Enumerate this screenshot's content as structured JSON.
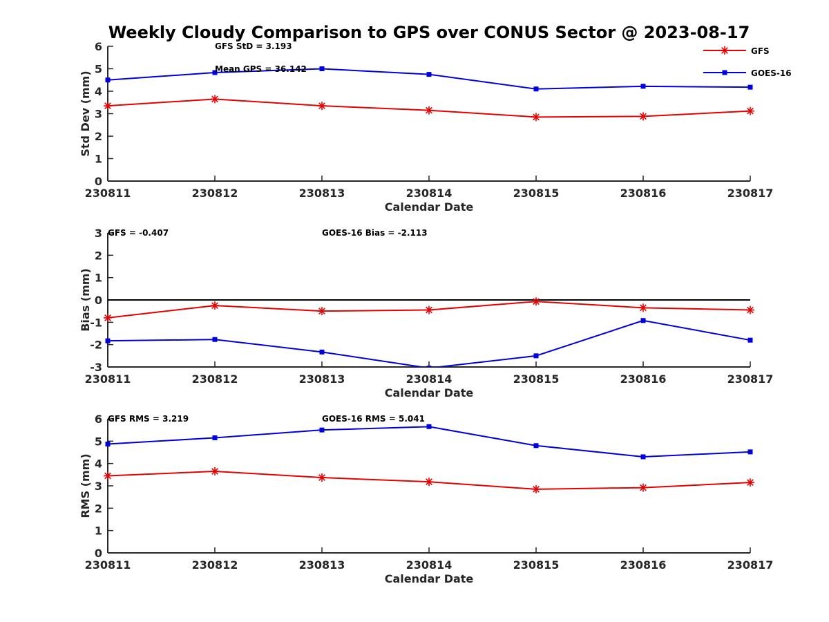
{
  "title": "Weekly Cloudy Comparison to GPS over CONUS Sector @ 2023-08-17",
  "colors": {
    "GFS": "#e60000",
    "GOES-16": "#0000dd",
    "zero_line": "#000000"
  },
  "legend": [
    {
      "name": "GFS",
      "marker": "asterisk"
    },
    {
      "name": "GOES-16",
      "marker": "square"
    }
  ],
  "chart_data": [
    {
      "type": "line",
      "id": "std",
      "categories": [
        "230811",
        "230812",
        "230813",
        "230814",
        "230815",
        "230816",
        "230817"
      ],
      "xlabel": "Calendar Date",
      "ylabel": "Std Dev (mm)",
      "ylim": [
        0,
        6
      ],
      "yticks": [
        0,
        1,
        2,
        3,
        4,
        5,
        6
      ],
      "zero_line": false,
      "series": [
        {
          "name": "GFS",
          "values": [
            3.35,
            3.65,
            3.35,
            3.15,
            2.85,
            2.88,
            3.12
          ]
        },
        {
          "name": "GOES-16",
          "values": [
            4.5,
            4.83,
            5.0,
            4.75,
            4.1,
            4.22,
            4.18
          ]
        }
      ],
      "annotations": [
        {
          "text": "GFS StD = 3.193",
          "x": 1,
          "y": 6.0
        },
        {
          "text": "Mean GPS = 36.142",
          "x": 1,
          "y": 5.0
        }
      ]
    },
    {
      "type": "line",
      "id": "bias",
      "categories": [
        "230811",
        "230812",
        "230813",
        "230814",
        "230815",
        "230816",
        "230817"
      ],
      "xlabel": "Calendar Date",
      "ylabel": "Bias (mm)",
      "ylim": [
        -3,
        3
      ],
      "yticks": [
        -3,
        -2,
        -1,
        0,
        1,
        2,
        3
      ],
      "zero_line": true,
      "series": [
        {
          "name": "GFS",
          "values": [
            -0.8,
            -0.25,
            -0.5,
            -0.45,
            -0.07,
            -0.35,
            -0.45
          ]
        },
        {
          "name": "GOES-16",
          "values": [
            -1.83,
            -1.77,
            -2.33,
            -3.05,
            -2.5,
            -0.92,
            -1.8
          ]
        }
      ],
      "annotations": [
        {
          "text": "GFS = -0.407",
          "x": 0,
          "y": 2.9
        },
        {
          "text": "GOES-16 Bias  = -2.113",
          "x": 2,
          "y": 2.9
        }
      ]
    },
    {
      "type": "line",
      "id": "rms",
      "categories": [
        "230811",
        "230812",
        "230813",
        "230814",
        "230815",
        "230816",
        "230817"
      ],
      "xlabel": "Calendar Date",
      "ylabel": "RMS (mm)",
      "ylim": [
        0,
        6
      ],
      "yticks": [
        0,
        1,
        2,
        3,
        4,
        5,
        6
      ],
      "zero_line": false,
      "series": [
        {
          "name": "GFS",
          "values": [
            3.45,
            3.65,
            3.37,
            3.18,
            2.85,
            2.92,
            3.15
          ]
        },
        {
          "name": "GOES-16",
          "values": [
            4.87,
            5.15,
            5.5,
            5.65,
            4.8,
            4.3,
            4.52
          ]
        }
      ],
      "annotations": [
        {
          "text": "GFS RMS = 3.219",
          "x": 0,
          "y": 5.9
        },
        {
          "text": "GOES-16 RMS = 5.041",
          "x": 2,
          "y": 5.9
        }
      ]
    }
  ]
}
